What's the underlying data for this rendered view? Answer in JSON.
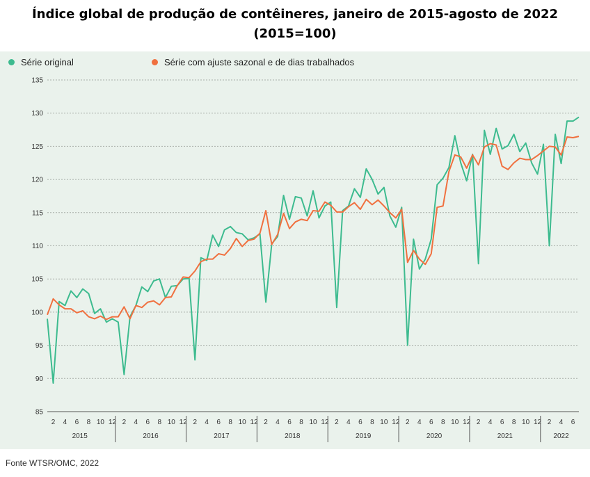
{
  "title_line1": "Índice global de produção de contêineres, janeiro de 2015-agosto de 2022",
  "title_line2": "(2015=100)",
  "source": "Fonte WTSR/OMC, 2022",
  "colors": {
    "original": "#3dbb8f",
    "adjusted": "#f0703f",
    "grid": "#a8aea8",
    "panel": "#eaf2ec"
  },
  "chart_data": {
    "type": "line",
    "ylim": [
      85,
      135
    ],
    "yticks": [
      85,
      90,
      95,
      100,
      105,
      110,
      115,
      120,
      125,
      130,
      135
    ],
    "month_tick_labels": [
      "2",
      "4",
      "6",
      "8",
      "10",
      "12"
    ],
    "years": [
      "2015",
      "2016",
      "2017",
      "2018",
      "2019",
      "2020",
      "2021",
      "2022"
    ],
    "x_start": "2015-01",
    "x_end": "2022-08",
    "grid": true,
    "legend_position": "top",
    "series": [
      {
        "name": "Série original",
        "color": "#3dbb8f",
        "values": [
          99.0,
          89.3,
          101.6,
          101.0,
          103.2,
          102.2,
          103.5,
          102.8,
          99.8,
          100.5,
          98.5,
          99.0,
          98.5,
          90.6,
          99.3,
          101.0,
          103.8,
          103.1,
          104.7,
          105.0,
          102.2,
          103.9,
          104.0,
          105.0,
          105.1,
          92.8,
          108.2,
          107.8,
          111.6,
          109.9,
          112.4,
          112.9,
          112.0,
          111.8,
          110.9,
          111.2,
          111.8,
          101.5,
          110.3,
          111.4,
          117.6,
          114.0,
          117.4,
          117.2,
          114.5,
          118.3,
          114.2,
          116.0,
          116.6,
          100.7,
          115.3,
          116.0,
          118.6,
          117.3,
          121.6,
          120.0,
          117.8,
          118.8,
          114.5,
          112.8,
          115.8,
          95.0,
          111.0,
          106.5,
          108.0,
          111.0,
          119.2,
          120.2,
          121.8,
          126.6,
          122.5,
          119.8,
          123.8,
          107.3,
          127.4,
          123.8,
          127.7,
          124.6,
          125.1,
          126.8,
          124.2,
          125.5,
          122.5,
          120.8,
          125.3,
          110.0,
          126.8,
          122.4,
          128.8,
          128.8,
          129.4
        ]
      },
      {
        "name": "Série com ajuste sazonal e de dias trabalhados",
        "color": "#f0703f",
        "values": [
          99.6,
          102.0,
          101.1,
          100.5,
          100.5,
          99.9,
          100.2,
          99.3,
          99.0,
          99.4,
          98.9,
          99.3,
          99.3,
          100.8,
          99.0,
          101.0,
          100.7,
          101.5,
          101.7,
          101.1,
          102.2,
          102.3,
          104.0,
          105.3,
          105.2,
          106.2,
          107.6,
          108.0,
          108.0,
          108.8,
          108.6,
          109.6,
          111.1,
          109.9,
          110.8,
          111.0,
          111.9,
          115.3,
          110.2,
          111.7,
          114.9,
          112.6,
          113.6,
          114.0,
          113.8,
          115.3,
          115.2,
          116.6,
          116.1,
          115.1,
          115.1,
          115.9,
          116.5,
          115.5,
          117.0,
          116.2,
          116.9,
          116.0,
          115.0,
          114.2,
          115.5,
          107.5,
          109.3,
          108.0,
          107.2,
          108.8,
          115.8,
          116.0,
          121.2,
          123.7,
          123.4,
          121.7,
          123.7,
          122.2,
          124.9,
          125.4,
          125.2,
          122.0,
          121.5,
          122.5,
          123.2,
          123.0,
          123.0,
          123.6,
          124.3,
          125.0,
          124.9,
          123.7,
          126.4,
          126.3,
          126.5
        ]
      }
    ]
  }
}
